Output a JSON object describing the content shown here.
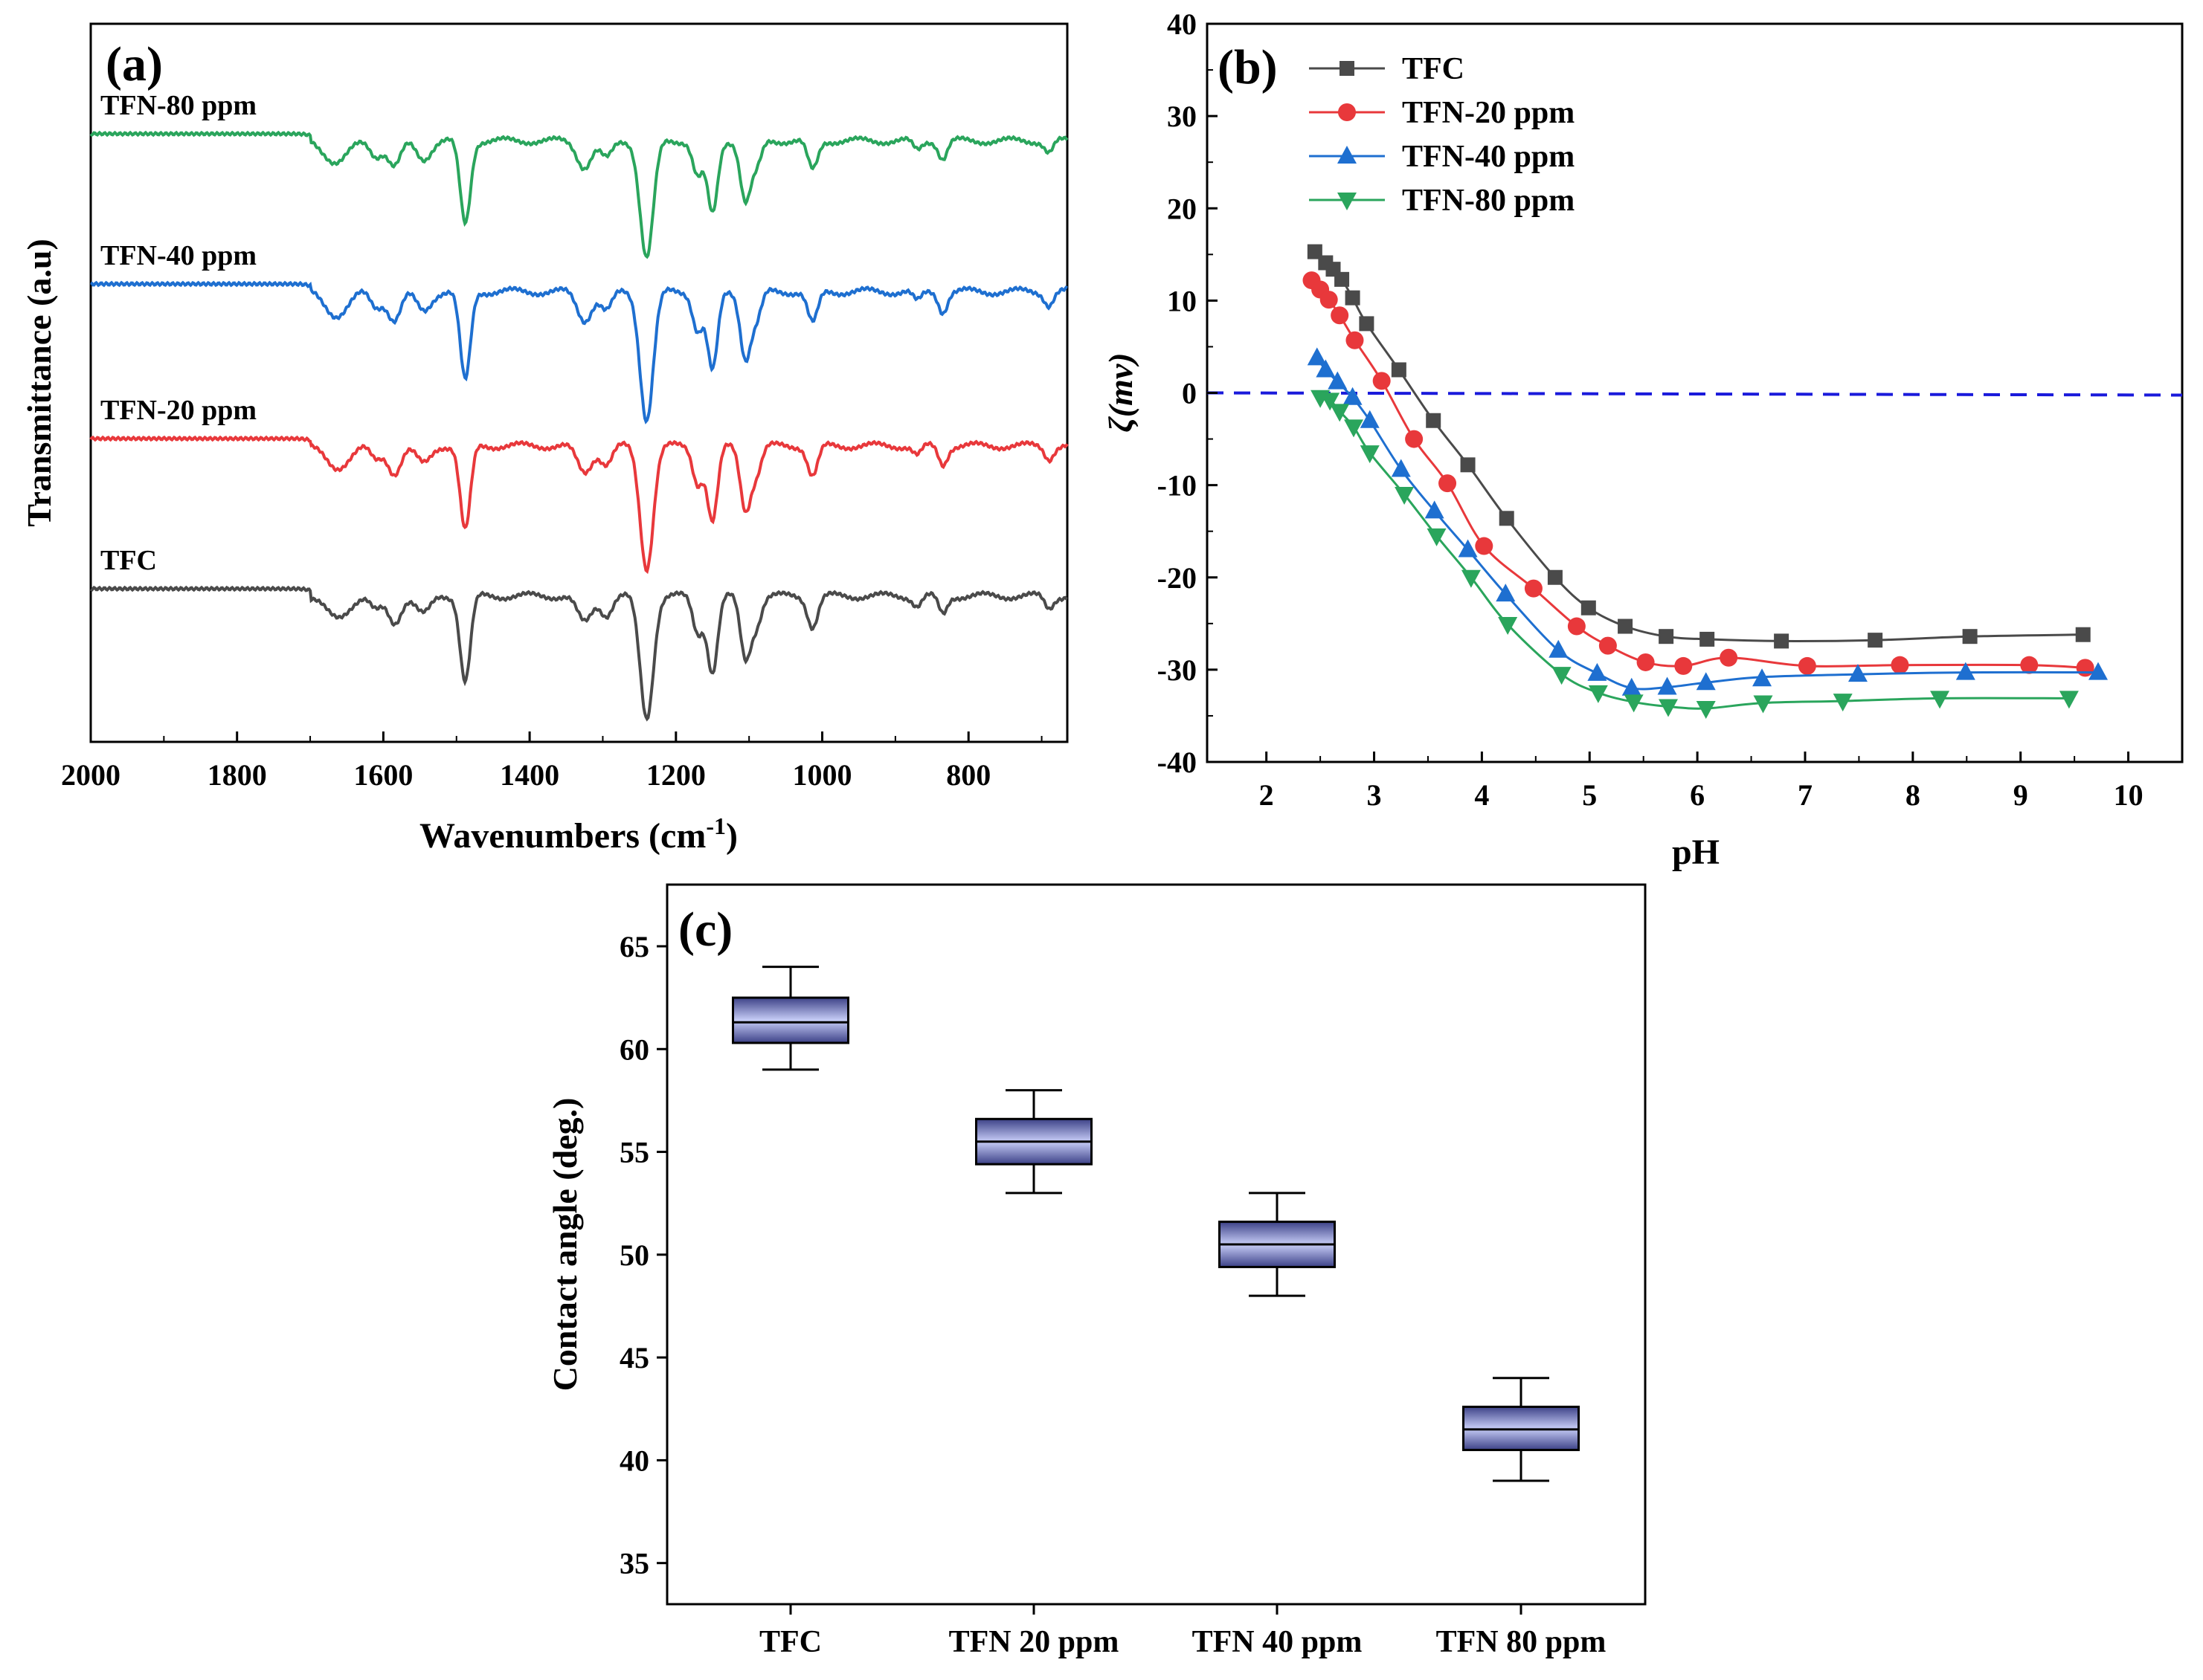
{
  "colors": {
    "tfc": "#4a4a4a",
    "tfn20": "#e8383b",
    "tfn40": "#1e6fd0",
    "tfn80": "#2aa55c",
    "zero_line": "#1a1adb",
    "box_fill_dark": "#3c4187",
    "box_fill_light": "#c7cdf7",
    "axis": "#000000"
  },
  "chart_data": [
    {
      "panel": "(a)",
      "type": "line",
      "title": "",
      "xlabel": "Wavenumbers (cm",
      "xlabel_sup": "-1",
      "xlabel_close": ")",
      "ylabel": "Transmittance (a.u)",
      "xlim": [
        2000,
        665
      ],
      "x_reversed": true,
      "xticks": [
        "2000",
        "1800",
        "1600",
        "1400",
        "1200",
        "1000",
        "800"
      ],
      "xtick_values": [
        2000,
        1800,
        1600,
        1400,
        1200,
        1000,
        800
      ],
      "y_ticks_shown": false,
      "peaks_cm1": [
        1664,
        1610,
        1585,
        1545,
        1488,
        1325,
        1295,
        1240,
        1170,
        1150,
        1105,
        1090,
        1013,
        870,
        835,
        690
      ],
      "peak_depths": [
        0.18,
        0.12,
        0.22,
        0.15,
        0.7,
        0.22,
        0.15,
        1.0,
        0.3,
        0.62,
        0.5,
        0.22,
        0.25,
        0.08,
        0.15,
        0.1
      ],
      "series": [
        {
          "name": "TFN-80 ppm",
          "color_key": "tfn80",
          "baseline_offset": 3.0,
          "depth_scale": 0.92
        },
        {
          "name": "TFN-40 ppm",
          "color_key": "tfn40",
          "baseline_offset": 2.0,
          "depth_scale": 1.0
        },
        {
          "name": "TFN-20 ppm",
          "color_key": "tfn20",
          "baseline_offset": 1.0,
          "depth_scale": 0.95
        },
        {
          "name": "TFC",
          "color_key": "tfc",
          "baseline_offset": 0.0,
          "depth_scale": 0.95
        }
      ]
    },
    {
      "panel": "(b)",
      "type": "line",
      "title": "",
      "xlabel": "pH",
      "ylabel": "ζ(mv)",
      "xlim": [
        1.45,
        10.5
      ],
      "ylim": [
        -40,
        40
      ],
      "xticks": [
        "2",
        "3",
        "4",
        "5",
        "6",
        "7",
        "8",
        "9",
        "10"
      ],
      "yticks": [
        "40",
        "30",
        "20",
        "10",
        "0",
        "-10",
        "-20",
        "-30",
        "-40"
      ],
      "reference_line_y": 0,
      "legend_position": "top-left",
      "series": [
        {
          "name": "TFC",
          "marker": "square",
          "color_key": "tfc",
          "x": [
            2.45,
            2.55,
            2.62,
            2.7,
            2.8,
            2.93,
            3.23,
            3.55,
            3.87,
            4.23,
            4.68,
            4.99,
            5.33,
            5.71,
            6.09,
            6.78,
            7.65,
            8.53,
            9.58
          ],
          "y": [
            15.3,
            14.1,
            13.4,
            12.3,
            10.3,
            7.5,
            2.5,
            -3.0,
            -7.8,
            -13.6,
            -20.0,
            -23.3,
            -25.3,
            -26.4,
            -26.7,
            -26.9,
            -26.8,
            -26.4,
            -26.2
          ]
        },
        {
          "name": "TFN-20 ppm",
          "marker": "circle",
          "color_key": "tfn20",
          "x": [
            2.42,
            2.5,
            2.58,
            2.68,
            2.82,
            3.07,
            3.37,
            3.68,
            4.02,
            4.48,
            4.88,
            5.17,
            5.52,
            5.87,
            6.29,
            7.02,
            7.88,
            9.08,
            9.6
          ],
          "y": [
            12.2,
            11.2,
            10.1,
            8.4,
            5.7,
            1.3,
            -5.0,
            -9.8,
            -16.6,
            -21.2,
            -25.3,
            -27.4,
            -29.2,
            -29.6,
            -28.7,
            -29.6,
            -29.5,
            -29.5,
            -29.8
          ]
        },
        {
          "name": "TFN-40 ppm",
          "marker": "triangle-up",
          "color_key": "tfn40",
          "x": [
            2.47,
            2.55,
            2.66,
            2.8,
            2.96,
            3.25,
            3.56,
            3.87,
            4.22,
            4.71,
            5.07,
            5.39,
            5.72,
            6.08,
            6.6,
            7.49,
            8.49,
            9.72
          ],
          "y": [
            3.8,
            2.5,
            1.2,
            -0.5,
            -3.0,
            -8.3,
            -12.8,
            -17.0,
            -21.8,
            -27.9,
            -30.4,
            -32.0,
            -31.9,
            -31.4,
            -31.0,
            -30.5,
            -30.3,
            -30.3
          ],
          "smooth_y": [
            3.8,
            2.5,
            1.2,
            -0.5,
            -3.0,
            -8.3,
            -12.8,
            -17.0,
            -21.8,
            -27.9,
            -30.4,
            -32.0,
            -31.9,
            -31.4,
            -30.8,
            -30.5,
            -30.3,
            -30.3
          ]
        },
        {
          "name": "TFN-80 ppm",
          "marker": "triangle-down",
          "color_key": "tfn80",
          "x": [
            2.5,
            2.59,
            2.68,
            2.81,
            2.96,
            3.28,
            3.58,
            3.9,
            4.24,
            4.74,
            5.08,
            5.41,
            5.73,
            6.08,
            6.61,
            7.35,
            8.25,
            9.45
          ],
          "y": [
            -0.5,
            -0.8,
            -2.0,
            -3.7,
            -6.5,
            -11.0,
            -15.5,
            -20.0,
            -25.1,
            -30.5,
            -32.5,
            -33.5,
            -34.0,
            -34.2,
            -33.6,
            -33.4,
            -33.1,
            -33.1
          ]
        }
      ]
    },
    {
      "panel": "(c)",
      "type": "box",
      "title": "",
      "xlabel": "",
      "ylabel": "Contact angle (deg.)",
      "ylim": [
        33,
        68
      ],
      "yticks": [
        "35",
        "40",
        "45",
        "50",
        "55",
        "60",
        "65"
      ],
      "ytick_values": [
        35,
        40,
        45,
        50,
        55,
        60,
        65
      ],
      "categories": [
        "TFC",
        "TFN 20 ppm",
        "TFN 40 ppm",
        "TFN 80 ppm"
      ],
      "boxes": [
        {
          "min": 59,
          "q1": 60.3,
          "median": 61.3,
          "q3": 62.5,
          "max": 64
        },
        {
          "min": 53,
          "q1": 54.4,
          "median": 55.5,
          "q3": 56.6,
          "max": 58
        },
        {
          "min": 48,
          "q1": 49.4,
          "median": 50.5,
          "q3": 51.6,
          "max": 53
        },
        {
          "min": 39,
          "q1": 40.5,
          "median": 41.5,
          "q3": 42.6,
          "max": 44
        }
      ]
    }
  ]
}
